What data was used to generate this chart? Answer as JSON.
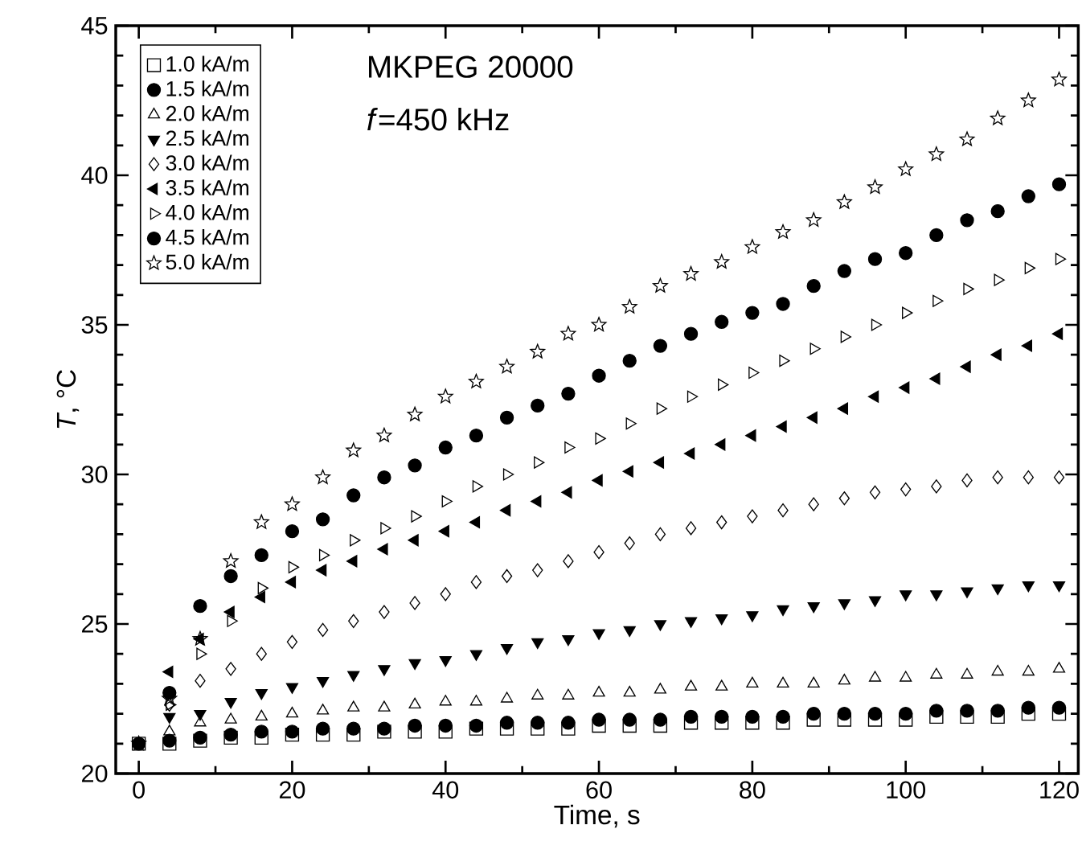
{
  "chart_data": {
    "type": "scatter",
    "xlabel": "Time, s",
    "ylabel": "*T*, °C",
    "annotations": [
      "MKPEG 20000",
      "*f*=450 kHz"
    ],
    "x": [
      0,
      4,
      8,
      12,
      16,
      20,
      24,
      28,
      32,
      36,
      40,
      44,
      48,
      52,
      56,
      60,
      64,
      68,
      72,
      76,
      80,
      84,
      88,
      92,
      96,
      100,
      104,
      108,
      112,
      116,
      120
    ],
    "xlim": [
      -3,
      122.5
    ],
    "ylim": [
      20,
      45
    ],
    "xticks": [
      0,
      20,
      40,
      60,
      80,
      100,
      120
    ],
    "yticks": [
      20,
      25,
      30,
      35,
      40,
      45
    ],
    "legend": "top left",
    "series": [
      {
        "name": "1.0 kA/m",
        "color": "#000000",
        "marker": "square-open",
        "values": [
          21.0,
          21.0,
          21.1,
          21.2,
          21.2,
          21.3,
          21.3,
          21.3,
          21.4,
          21.4,
          21.4,
          21.5,
          21.5,
          21.5,
          21.5,
          21.6,
          21.6,
          21.6,
          21.7,
          21.7,
          21.7,
          21.7,
          21.8,
          21.8,
          21.8,
          21.8,
          21.9,
          21.9,
          21.9,
          22.0,
          22.0
        ]
      },
      {
        "name": "1.5 kA/m",
        "color": "#000000",
        "marker": "circle",
        "values": [
          21.0,
          21.1,
          21.2,
          21.3,
          21.4,
          21.4,
          21.5,
          21.5,
          21.5,
          21.6,
          21.6,
          21.6,
          21.7,
          21.7,
          21.7,
          21.8,
          21.8,
          21.8,
          21.9,
          21.9,
          21.9,
          21.9,
          22.0,
          22.0,
          22.0,
          22.0,
          22.1,
          22.1,
          22.1,
          22.2,
          22.2
        ]
      },
      {
        "name": "2.0 kA/m",
        "color": "#000000",
        "marker": "triangle",
        "values": [
          null,
          21.4,
          21.7,
          21.8,
          21.9,
          22.0,
          22.1,
          22.2,
          22.2,
          22.3,
          22.4,
          22.4,
          22.5,
          22.6,
          22.6,
          22.7,
          22.7,
          22.8,
          22.9,
          22.9,
          23.0,
          23.0,
          23.0,
          23.1,
          23.2,
          23.2,
          23.3,
          23.3,
          23.4,
          23.4,
          23.5
        ]
      },
      {
        "name": "2.5 kA/m",
        "color": "#000000",
        "marker": "triangle-down",
        "values": [
          null,
          21.9,
          22.0,
          22.4,
          22.7,
          22.9,
          23.1,
          23.3,
          23.5,
          23.7,
          23.8,
          24.0,
          24.2,
          24.4,
          24.5,
          24.7,
          24.8,
          25.0,
          25.1,
          25.2,
          25.3,
          25.5,
          25.6,
          25.7,
          25.8,
          26.0,
          26.0,
          26.1,
          26.2,
          26.3,
          26.3
        ]
      },
      {
        "name": "3.0 kA/m",
        "color": "#000000",
        "marker": "diamond",
        "values": [
          null,
          22.3,
          23.1,
          23.5,
          24.0,
          24.4,
          24.8,
          25.1,
          25.4,
          25.7,
          26.0,
          26.4,
          26.6,
          26.8,
          27.1,
          27.4,
          27.7,
          28.0,
          28.2,
          28.4,
          28.6,
          28.8,
          29.0,
          29.2,
          29.4,
          29.5,
          29.6,
          29.8,
          29.9,
          29.9,
          29.9
        ]
      },
      {
        "name": "3.5 kA/m",
        "color": "#000000",
        "marker": "triangle-left",
        "values": [
          null,
          23.4,
          24.5,
          25.4,
          25.9,
          26.4,
          26.8,
          27.1,
          27.5,
          27.8,
          28.1,
          28.4,
          28.8,
          29.1,
          29.4,
          29.8,
          30.1,
          30.4,
          30.7,
          31.0,
          31.3,
          31.6,
          31.9,
          32.2,
          32.6,
          32.9,
          33.2,
          33.6,
          34.0,
          34.3,
          34.7
        ]
      },
      {
        "name": "4.0 kA/m",
        "color": "#000000",
        "marker": "triangle-right-open",
        "values": [
          null,
          22.3,
          24.0,
          25.1,
          26.2,
          26.9,
          27.3,
          27.8,
          28.2,
          28.6,
          29.1,
          29.6,
          30.0,
          30.4,
          30.9,
          31.2,
          31.7,
          32.2,
          32.6,
          33.0,
          33.4,
          33.8,
          34.2,
          34.6,
          35.0,
          35.4,
          35.8,
          36.2,
          36.5,
          36.9,
          37.2
        ]
      },
      {
        "name": "4.5 kA/m",
        "color": "#000000",
        "marker": "circle",
        "values": [
          null,
          22.7,
          25.6,
          26.6,
          27.3,
          28.1,
          28.5,
          29.3,
          29.9,
          30.3,
          30.9,
          31.3,
          31.9,
          32.3,
          32.7,
          33.3,
          33.8,
          34.3,
          34.7,
          35.1,
          35.4,
          35.7,
          36.3,
          36.8,
          37.2,
          37.4,
          38.0,
          38.5,
          38.8,
          39.3,
          39.7
        ]
      },
      {
        "name": "5.0 kA/m",
        "color": "#000000",
        "marker": "star-open",
        "values": [
          21.0,
          22.5,
          24.5,
          27.1,
          28.4,
          29.0,
          29.9,
          30.8,
          31.3,
          32.0,
          32.6,
          33.1,
          33.6,
          34.1,
          34.7,
          35.0,
          35.6,
          36.3,
          36.7,
          37.1,
          37.6,
          38.1,
          38.5,
          39.1,
          39.6,
          40.2,
          40.7,
          41.2,
          41.9,
          42.5,
          43.2
        ]
      }
    ]
  }
}
